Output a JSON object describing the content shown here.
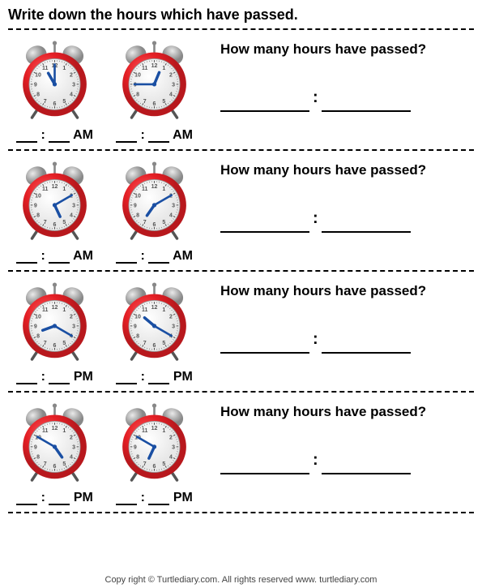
{
  "title": "Write down the hours which have passed.",
  "question_text": "How many hours have passed?",
  "footer": "Copy right © Turtlediary.com. All rights reserved   www. turtlediary.com",
  "colors": {
    "clock_body": "#e31e24",
    "clock_body_dark": "#b8181d",
    "clock_face": "#ffffff",
    "clock_face_shadow": "#e8e8e8",
    "clock_bell": "#c0c0c0",
    "clock_bell_dark": "#888888",
    "hour_hand": "#1a4fa3",
    "minute_hand": "#1a4fa3",
    "clock_number": "#555555",
    "clock_leg": "#555555"
  },
  "rows": [
    {
      "period": "AM",
      "clock1": {
        "hour": 11,
        "minute": 0
      },
      "clock2": {
        "hour": 12,
        "minute": 45
      }
    },
    {
      "period": "AM",
      "clock1": {
        "hour": 5,
        "minute": 10
      },
      "clock2": {
        "hour": 7,
        "minute": 10
      }
    },
    {
      "period": "PM",
      "clock1": {
        "hour": 8,
        "minute": 20
      },
      "clock2": {
        "hour": 10,
        "minute": 20
      }
    },
    {
      "period": "PM",
      "clock1": {
        "hour": 4,
        "minute": 50
      },
      "clock2": {
        "hour": 6,
        "minute": 50
      }
    }
  ]
}
